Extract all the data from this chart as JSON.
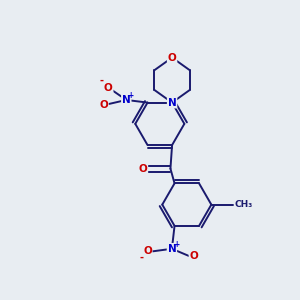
{
  "bg_color": "#e8edf2",
  "bond_color": "#1a1a6e",
  "O_color": "#cc0000",
  "N_color": "#0000cc",
  "bond_lw": 1.4,
  "ring_r": 0.75,
  "fig_xlim": [
    -3.5,
    3.5
  ],
  "fig_ylim": [
    -4.5,
    4.5
  ]
}
